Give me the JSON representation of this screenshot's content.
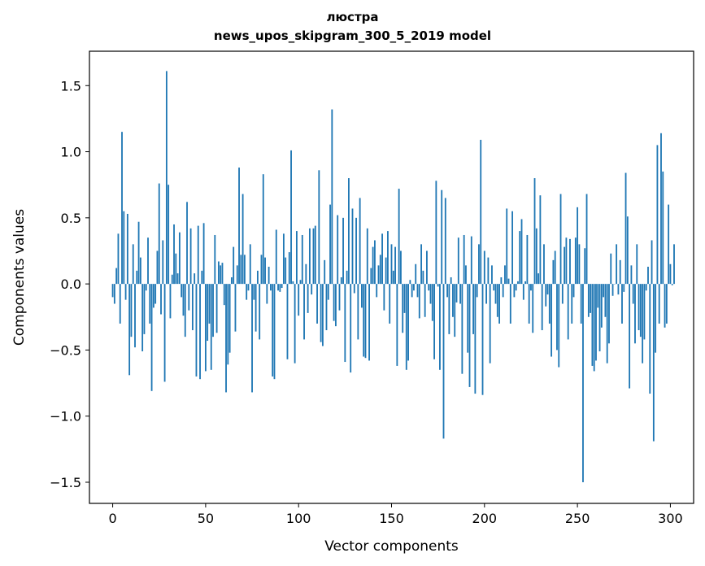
{
  "chart_data": {
    "type": "bar",
    "title": "люстра",
    "subtitle": "news_upos_skipgram_300_5_2019 model",
    "xlabel": "Vector components",
    "ylabel": "Components values",
    "xlim": [
      -12.5,
      312.5
    ],
    "ylim": [
      -1.66,
      1.76
    ],
    "xticks": [
      0,
      50,
      100,
      150,
      200,
      250,
      300
    ],
    "yticks": [
      -1.5,
      -1.0,
      -0.5,
      0.0,
      0.5,
      1.0,
      1.5
    ],
    "ytick_labels": [
      "−1.5",
      "−1.0",
      "−0.5",
      "0.0",
      "0.5",
      "1.0",
      "1.5"
    ],
    "grid": false,
    "bar_color": "#1f77b4",
    "values": [
      -0.1,
      -0.15,
      0.12,
      0.38,
      -0.3,
      1.15,
      0.55,
      -0.12,
      0.53,
      -0.69,
      -0.4,
      0.3,
      -0.48,
      0.1,
      0.47,
      0.2,
      -0.51,
      -0.38,
      -0.05,
      0.35,
      -0.3,
      -0.81,
      -0.18,
      -0.15,
      0.25,
      0.76,
      -0.23,
      0.33,
      -0.74,
      1.61,
      0.75,
      -0.26,
      0.07,
      0.45,
      0.23,
      0.08,
      0.39,
      -0.1,
      -0.24,
      -0.4,
      0.62,
      -0.2,
      0.42,
      -0.35,
      0.08,
      -0.7,
      0.44,
      -0.72,
      0.1,
      0.46,
      -0.66,
      -0.43,
      -0.3,
      -0.65,
      -0.4,
      0.37,
      -0.37,
      0.17,
      0.14,
      0.16,
      -0.16,
      -0.82,
      -0.61,
      -0.52,
      0.05,
      0.28,
      -0.36,
      0.14,
      0.88,
      0.22,
      0.68,
      0.22,
      -0.12,
      -0.05,
      0.3,
      -0.82,
      -0.12,
      -0.36,
      0.1,
      -0.42,
      0.22,
      0.83,
      0.2,
      -0.15,
      0.13,
      -0.05,
      -0.7,
      -0.72,
      0.41,
      -0.05,
      -0.06,
      -0.03,
      0.38,
      0.2,
      -0.57,
      0.24,
      1.01,
      0.02,
      -0.6,
      0.4,
      -0.24,
      0.03,
      0.37,
      -0.42,
      0.15,
      -0.22,
      0.42,
      -0.08,
      0.42,
      0.44,
      -0.3,
      0.86,
      -0.44,
      -0.47,
      0.18,
      -0.35,
      -0.12,
      0.6,
      1.32,
      -0.28,
      -0.32,
      0.52,
      -0.2,
      0.05,
      0.5,
      -0.59,
      0.1,
      0.8,
      -0.67,
      0.57,
      -0.07,
      0.5,
      -0.42,
      0.65,
      -0.18,
      -0.55,
      -0.56,
      0.42,
      -0.58,
      0.12,
      0.28,
      0.33,
      -0.1,
      0.14,
      0.22,
      0.38,
      -0.2,
      0.2,
      0.4,
      -0.3,
      0.3,
      0.1,
      0.28,
      -0.62,
      0.72,
      0.25,
      -0.37,
      -0.22,
      -0.65,
      -0.58,
      0.03,
      -0.1,
      -0.05,
      0.15,
      -0.1,
      -0.26,
      0.3,
      0.1,
      -0.25,
      0.25,
      -0.05,
      -0.15,
      -0.28,
      -0.57,
      0.78,
      -0.02,
      -0.65,
      0.71,
      -1.17,
      0.65,
      -0.1,
      -0.38,
      0.05,
      -0.25,
      -0.4,
      -0.14,
      0.35,
      -0.15,
      -0.68,
      0.37,
      0.14,
      -0.52,
      -0.78,
      0.36,
      -0.38,
      -0.83,
      -0.1,
      0.3,
      1.09,
      -0.84,
      0.25,
      -0.15,
      0.2,
      -0.6,
      0.14,
      -0.05,
      -0.15,
      -0.25,
      -0.3,
      0.05,
      -0.1,
      0.14,
      0.57,
      0.04,
      -0.3,
      0.55,
      -0.1,
      -0.05,
      0.02,
      0.4,
      0.49,
      -0.12,
      0.02,
      0.37,
      -0.3,
      -0.05,
      -0.37,
      0.8,
      0.42,
      0.08,
      0.67,
      -0.35,
      0.3,
      -0.17,
      -0.08,
      -0.3,
      -0.55,
      0.18,
      0.25,
      -0.5,
      -0.63,
      0.68,
      -0.15,
      0.28,
      0.35,
      -0.42,
      0.34,
      -0.3,
      -0.1,
      0.35,
      0.58,
      0.3,
      -0.3,
      -1.5,
      0.27,
      0.68,
      -0.25,
      -0.22,
      -0.62,
      -0.66,
      -0.58,
      -0.18,
      -0.51,
      -0.33,
      -0.1,
      -0.25,
      -0.6,
      -0.45,
      0.23,
      -0.09,
      0.0,
      0.3,
      -0.08,
      0.18,
      -0.3,
      -0.06,
      0.84,
      0.51,
      -0.79,
      0.14,
      -0.15,
      -0.45,
      0.3,
      -0.35,
      -0.4,
      -0.6,
      -0.42,
      -0.05,
      0.13,
      -0.83,
      0.33,
      -1.19,
      -0.52,
      1.05,
      -0.3,
      1.14,
      0.85,
      -0.33,
      -0.3,
      0.6,
      0.15,
      -0.01,
      0.3
    ]
  }
}
